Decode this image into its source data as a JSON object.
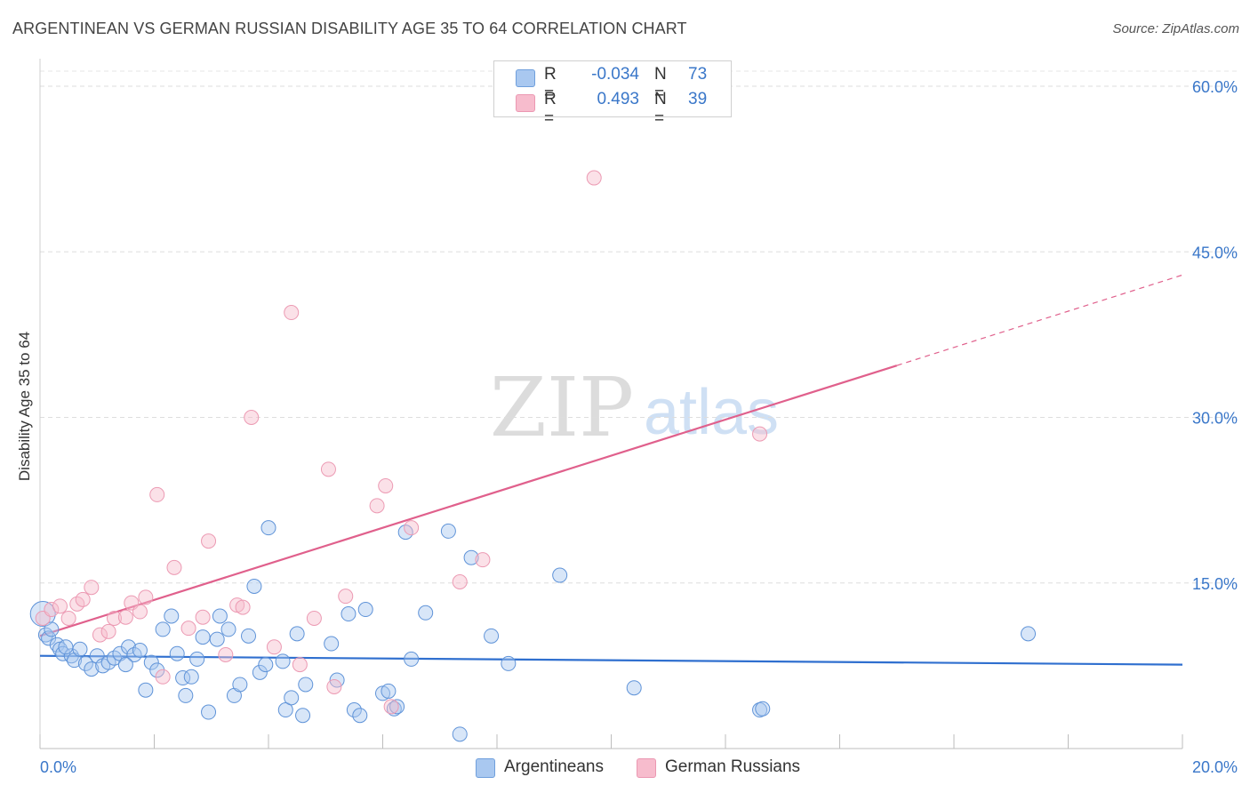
{
  "title": "ARGENTINEAN VS GERMAN RUSSIAN DISABILITY AGE 35 TO 64 CORRELATION CHART",
  "source": "Source: ZipAtlas.com",
  "watermark": {
    "zip": "ZIP",
    "atlas": "atlas"
  },
  "legend": {
    "rows": [
      {
        "r_label": "R =",
        "r_value": "-0.034",
        "n_label": "N =",
        "n_value": "73",
        "color": "#a9c8f0"
      },
      {
        "r_label": "R =",
        "r_value": "0.493",
        "n_label": "N =",
        "n_value": "39",
        "color": "#f7bccd"
      }
    ]
  },
  "bottom_legend": [
    {
      "label": "Argentineans",
      "color": "#a9c8f0"
    },
    {
      "label": "German Russians",
      "color": "#f7bccd"
    }
  ],
  "chart_data": {
    "type": "scatter",
    "ylabel": "Disability Age 35 to 64",
    "xlim": [
      0,
      20
    ],
    "ylim": [
      0,
      60
    ],
    "x_tick_labels": [
      {
        "value": 0,
        "label": "0.0%"
      },
      {
        "value": 20,
        "label": "20.0%"
      }
    ],
    "y_tick_labels": [
      {
        "value": 15,
        "label": "15.0%"
      },
      {
        "value": 30,
        "label": "30.0%"
      },
      {
        "value": 45,
        "label": "45.0%"
      },
      {
        "value": 60,
        "label": "60.0%"
      }
    ],
    "grid": true,
    "series": [
      {
        "name": "Argentineans",
        "color": "#7aaae6",
        "trend": {
          "x": [
            0,
            20
          ],
          "y": [
            8.4,
            7.6
          ],
          "color": "#2f6fcf"
        },
        "points": [
          [
            0.05,
            12.2
          ],
          [
            0.1,
            10.3
          ],
          [
            0.15,
            10.0
          ],
          [
            0.3,
            9.4
          ],
          [
            0.35,
            9.0
          ],
          [
            0.4,
            8.6
          ],
          [
            0.55,
            8.4
          ],
          [
            0.6,
            8.0
          ],
          [
            0.7,
            9.0
          ],
          [
            0.8,
            7.7
          ],
          [
            0.9,
            7.2
          ],
          [
            1.0,
            8.4
          ],
          [
            1.1,
            7.5
          ],
          [
            1.2,
            7.8
          ],
          [
            1.3,
            8.2
          ],
          [
            1.4,
            8.6
          ],
          [
            1.55,
            9.2
          ],
          [
            1.65,
            8.5
          ],
          [
            1.75,
            8.9
          ],
          [
            1.85,
            5.3
          ],
          [
            1.95,
            7.8
          ],
          [
            2.05,
            7.1
          ],
          [
            2.15,
            10.8
          ],
          [
            2.3,
            12.0
          ],
          [
            2.4,
            8.6
          ],
          [
            2.5,
            6.4
          ],
          [
            2.55,
            4.8
          ],
          [
            2.65,
            6.5
          ],
          [
            2.75,
            8.1
          ],
          [
            2.85,
            10.1
          ],
          [
            2.95,
            3.3
          ],
          [
            3.1,
            9.9
          ],
          [
            3.15,
            12.0
          ],
          [
            3.3,
            10.8
          ],
          [
            3.4,
            4.8
          ],
          [
            3.5,
            5.8
          ],
          [
            3.65,
            10.2
          ],
          [
            3.75,
            14.7
          ],
          [
            3.85,
            6.9
          ],
          [
            3.95,
            7.6
          ],
          [
            4.0,
            20.0
          ],
          [
            4.25,
            7.9
          ],
          [
            4.3,
            3.5
          ],
          [
            4.4,
            4.6
          ],
          [
            4.5,
            10.4
          ],
          [
            4.6,
            3.0
          ],
          [
            4.65,
            5.8
          ],
          [
            5.1,
            9.5
          ],
          [
            5.2,
            6.2
          ],
          [
            5.4,
            12.2
          ],
          [
            5.5,
            3.5
          ],
          [
            5.6,
            3.0
          ],
          [
            5.7,
            12.6
          ],
          [
            6.0,
            5.0
          ],
          [
            6.1,
            5.2
          ],
          [
            6.2,
            3.6
          ],
          [
            6.25,
            3.8
          ],
          [
            6.4,
            19.6
          ],
          [
            6.5,
            8.1
          ],
          [
            6.75,
            12.3
          ],
          [
            7.15,
            19.7
          ],
          [
            7.35,
            1.3
          ],
          [
            7.55,
            17.3
          ],
          [
            7.9,
            10.2
          ],
          [
            8.2,
            7.7
          ],
          [
            9.1,
            15.7
          ],
          [
            10.4,
            5.5
          ],
          [
            12.6,
            3.5
          ],
          [
            12.65,
            3.6
          ],
          [
            17.3,
            10.4
          ],
          [
            0.2,
            10.8
          ],
          [
            0.45,
            9.2
          ],
          [
            1.5,
            7.6
          ]
        ]
      },
      {
        "name": "German Russians",
        "color": "#f0a0b8",
        "trend": {
          "x": [
            0,
            15
          ],
          "y": [
            10.2,
            34.7
          ],
          "dash_to": [
            20,
            42.9
          ],
          "color": "#e0608c"
        },
        "points": [
          [
            0.05,
            11.8
          ],
          [
            0.2,
            12.6
          ],
          [
            0.35,
            12.9
          ],
          [
            0.5,
            11.8
          ],
          [
            0.65,
            13.1
          ],
          [
            0.75,
            13.5
          ],
          [
            0.9,
            14.6
          ],
          [
            1.05,
            10.3
          ],
          [
            1.2,
            10.6
          ],
          [
            1.3,
            11.8
          ],
          [
            1.5,
            11.9
          ],
          [
            1.6,
            13.2
          ],
          [
            1.75,
            12.4
          ],
          [
            1.85,
            13.7
          ],
          [
            2.05,
            23.0
          ],
          [
            2.15,
            6.5
          ],
          [
            2.35,
            16.4
          ],
          [
            2.6,
            10.9
          ],
          [
            2.85,
            11.9
          ],
          [
            2.95,
            18.8
          ],
          [
            3.25,
            8.5
          ],
          [
            3.45,
            13.0
          ],
          [
            3.55,
            12.8
          ],
          [
            3.7,
            30.0
          ],
          [
            4.1,
            9.2
          ],
          [
            4.4,
            39.5
          ],
          [
            4.55,
            7.6
          ],
          [
            4.8,
            11.8
          ],
          [
            5.05,
            25.3
          ],
          [
            5.15,
            5.6
          ],
          [
            5.35,
            13.8
          ],
          [
            5.9,
            22.0
          ],
          [
            6.05,
            23.8
          ],
          [
            6.15,
            3.8
          ],
          [
            6.5,
            20.0
          ],
          [
            7.35,
            15.1
          ],
          [
            7.75,
            17.1
          ],
          [
            9.7,
            51.7
          ],
          [
            12.6,
            28.5
          ]
        ]
      }
    ]
  }
}
